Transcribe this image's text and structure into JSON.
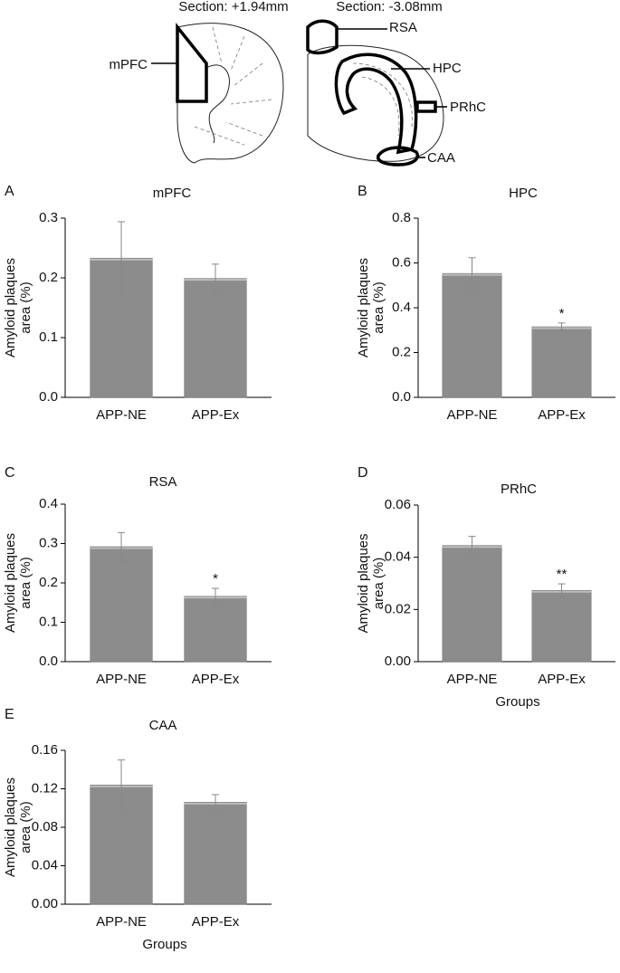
{
  "diagram": {
    "sections": [
      "Section: +1.94mm",
      "Section: -3.08mm"
    ],
    "labels": [
      "mPFC",
      "RSA",
      "HPC",
      "PRhC",
      "CAA"
    ]
  },
  "chart_data": [
    {
      "type": "bar",
      "panel": "A",
      "title": "mPFC",
      "ylabel": [
        "Amyloid plaques",
        "area (%)"
      ],
      "categories": [
        "APP-NE",
        "APP-Ex"
      ],
      "values": [
        0.233,
        0.199
      ],
      "errors": [
        0.061,
        0.024
      ],
      "significance": [
        null,
        null
      ],
      "color": "#8c8c8c",
      "ylim": [
        0,
        0.3
      ],
      "yticks": [
        {
          "value": 0,
          "label": "0.0"
        },
        0.1,
        0.2,
        0.3
      ]
    },
    {
      "type": "bar",
      "panel": "B",
      "title": "HPC",
      "ylabel": [
        "Amyloid plaques",
        "area (%)"
      ],
      "categories": [
        "APP-NE",
        "APP-Ex"
      ],
      "values": [
        0.553,
        0.315
      ],
      "errors": [
        0.07,
        0.017
      ],
      "significance": [
        null,
        "*"
      ],
      "color": "#8c8c8c",
      "ylim": [
        0,
        0.8
      ],
      "yticks": [
        {
          "value": 0,
          "label": "0.0"
        },
        0.2,
        0.4,
        0.6,
        0.8
      ]
    },
    {
      "type": "bar",
      "panel": "C",
      "title": "RSA",
      "ylabel": [
        "Amyloid plaques",
        "area (%)"
      ],
      "categories": [
        "APP-NE",
        "APP-Ex"
      ],
      "values": [
        0.292,
        0.166
      ],
      "errors": [
        0.036,
        0.02
      ],
      "significance": [
        null,
        "*"
      ],
      "color": "#8c8c8c",
      "ylim": [
        0,
        0.4
      ],
      "yticks": [
        {
          "value": 0,
          "label": "0.0"
        },
        0.1,
        0.2,
        0.3,
        0.4
      ]
    },
    {
      "type": "bar",
      "panel": "D",
      "title": "PRhC",
      "ylabel": [
        "Amyloid plaques",
        "area (%)"
      ],
      "xlabel": "Groups",
      "categories": [
        "APP-NE",
        "APP-Ex"
      ],
      "values": [
        0.0445,
        0.0273
      ],
      "errors": [
        0.0035,
        0.0025
      ],
      "significance": [
        null,
        "**"
      ],
      "color": "#8c8c8c",
      "ylim": [
        0,
        0.06
      ],
      "yticks": [
        {
          "value": 0,
          "label": "0.00"
        },
        0.02,
        0.04,
        0.06
      ]
    },
    {
      "type": "bar",
      "panel": "E",
      "title": "CAA",
      "ylabel": [
        "Amyloid plaques",
        "area (%)"
      ],
      "xlabel": "Groups",
      "categories": [
        "APP-NE",
        "APP-Ex"
      ],
      "values": [
        0.124,
        0.106
      ],
      "errors": [
        0.026,
        0.008
      ],
      "significance": [
        null,
        null
      ],
      "color": "#8c8c8c",
      "ylim": [
        0,
        0.16
      ],
      "yticks": [
        {
          "value": 0,
          "label": "0.00"
        },
        0.04,
        0.08,
        0.12,
        0.16
      ]
    }
  ]
}
